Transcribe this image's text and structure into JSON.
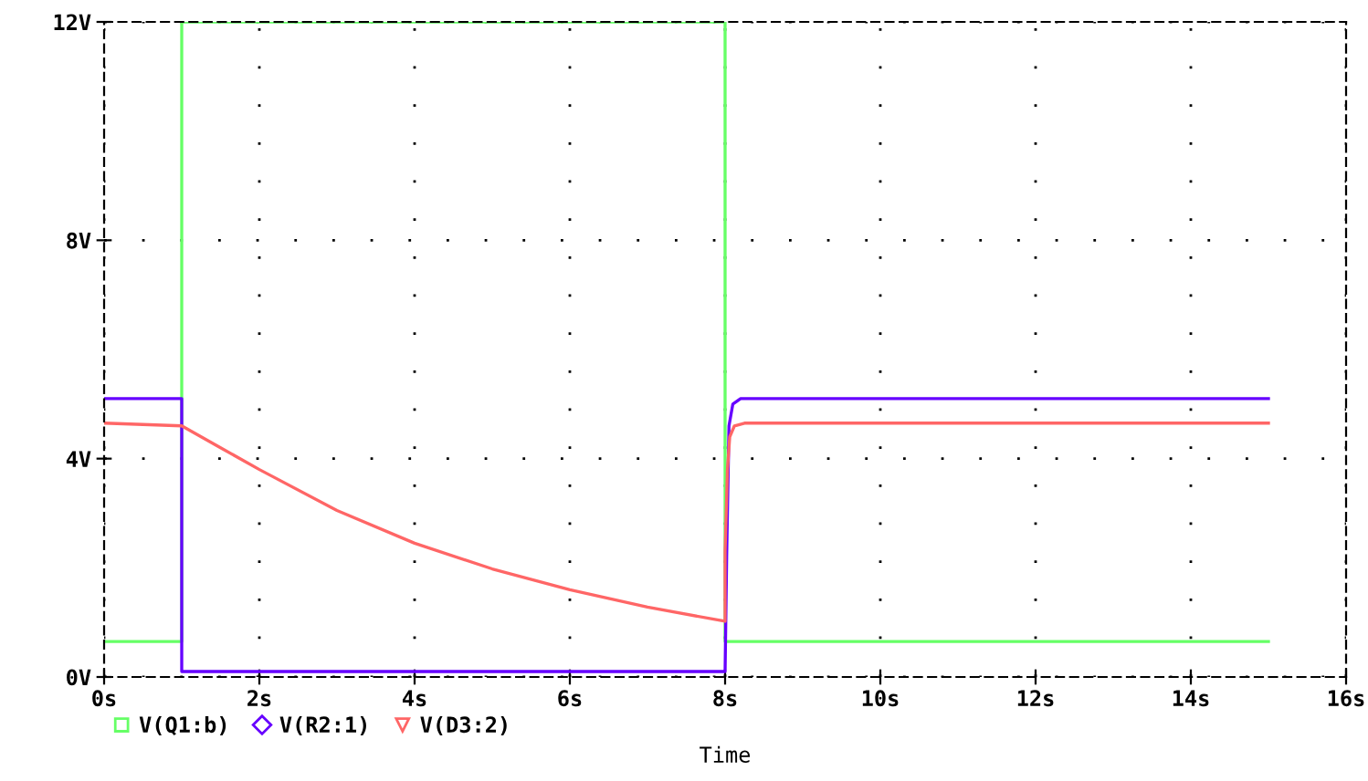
{
  "chart_data": {
    "type": "line",
    "xlabel": "Time",
    "series": [
      {
        "name": "V(Q1:b)",
        "color": "#66ff66",
        "x": [
          0,
          1,
          1,
          8,
          8,
          15
        ],
        "values": [
          0.65,
          0.65,
          12,
          12,
          0.65,
          0.65
        ]
      },
      {
        "name": "V(R2:1)",
        "color": "#6600ff",
        "x": [
          0,
          1,
          1,
          8,
          8.02,
          8.05,
          8.1,
          8.2,
          15
        ],
        "values": [
          5.1,
          5.1,
          0.1,
          0.1,
          2.2,
          4.6,
          5.0,
          5.1,
          5.1
        ]
      },
      {
        "name": "V(D3:2)",
        "color": "#ff6666",
        "x": [
          0,
          1,
          1.5,
          2,
          3,
          4,
          5,
          6,
          7,
          8,
          8,
          8.03,
          8.06,
          8.12,
          8.25,
          15
        ],
        "values": [
          4.65,
          4.6,
          4.2,
          3.8,
          3.05,
          2.45,
          1.98,
          1.6,
          1.28,
          1.02,
          2.3,
          3.8,
          4.4,
          4.6,
          4.65,
          4.65
        ]
      }
    ],
    "xlim": [
      0,
      16
    ],
    "ylim": [
      0,
      12
    ],
    "xticks": [
      {
        "value": 0,
        "label": "0s"
      },
      {
        "value": 2,
        "label": "2s"
      },
      {
        "value": 4,
        "label": "4s"
      },
      {
        "value": 6,
        "label": "6s"
      },
      {
        "value": 8,
        "label": "8s"
      },
      {
        "value": 10,
        "label": "10s"
      },
      {
        "value": 12,
        "label": "12s"
      },
      {
        "value": 14,
        "label": "14s"
      },
      {
        "value": 16,
        "label": "16s"
      }
    ],
    "yticks": [
      {
        "value": 0,
        "label": "0V"
      },
      {
        "value": 4,
        "label": "4V"
      },
      {
        "value": 8,
        "label": "8V"
      },
      {
        "value": 12,
        "label": "12V"
      }
    ],
    "grid": true,
    "legend": "bottom left",
    "line_style": "solid"
  }
}
